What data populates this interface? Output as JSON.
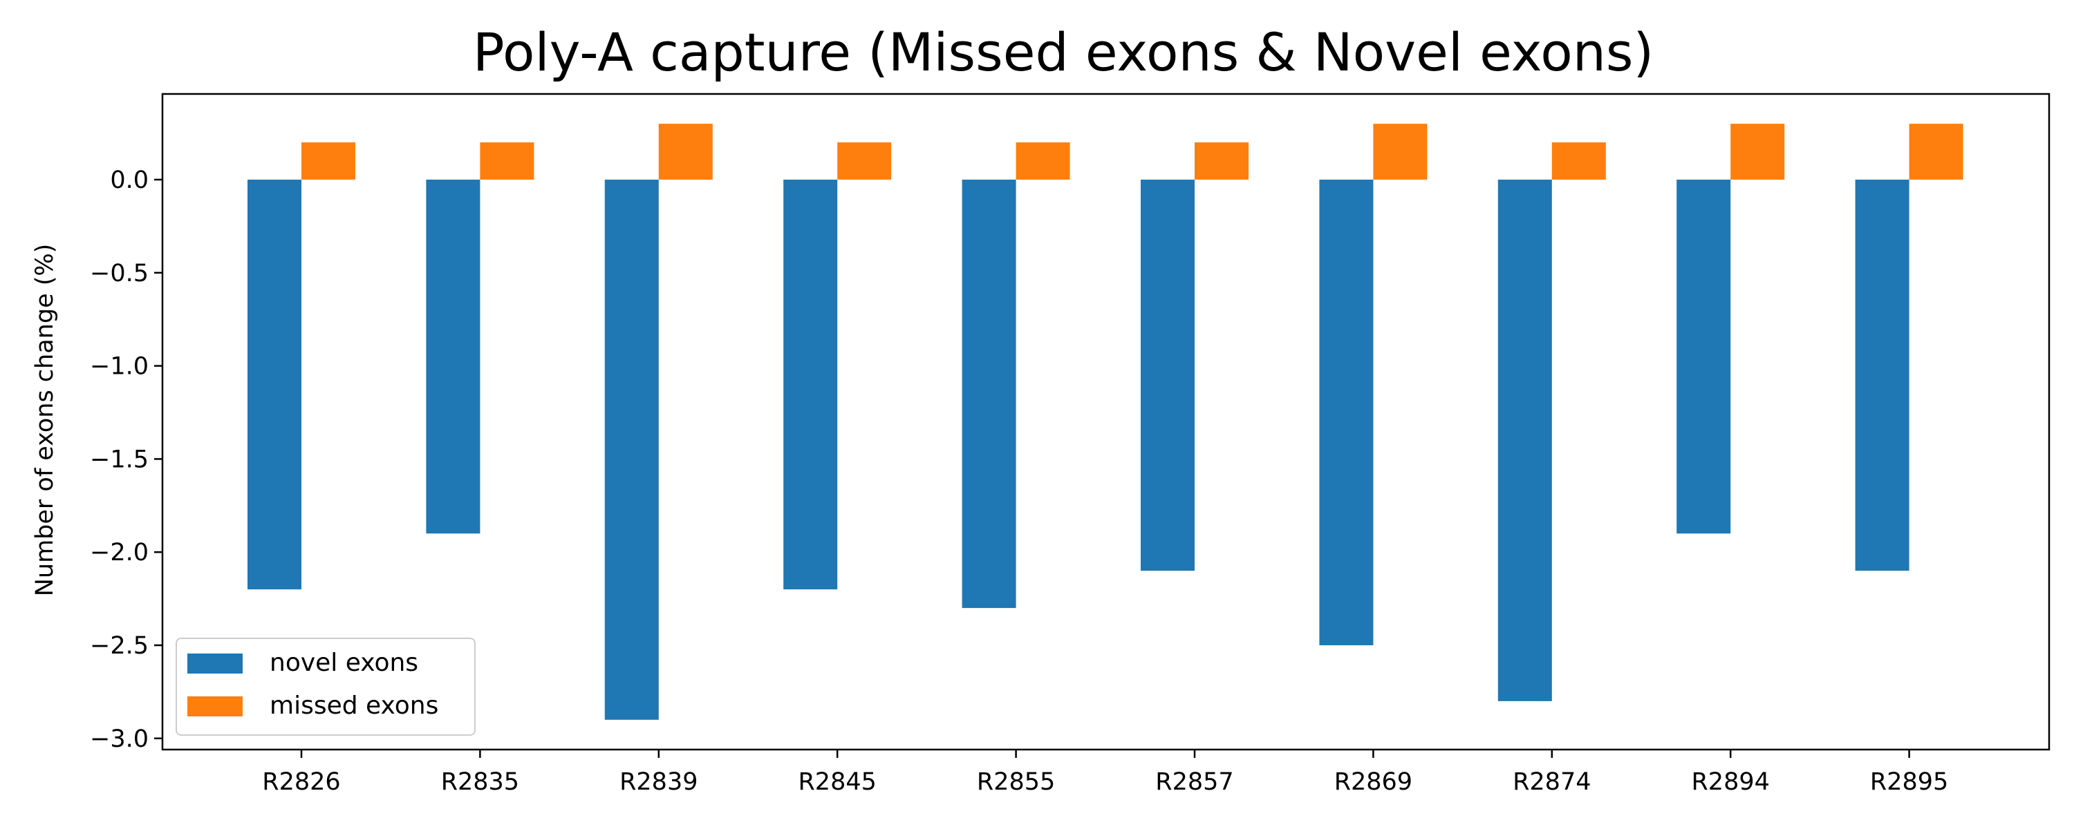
{
  "chart_data": {
    "type": "bar",
    "title": "Poly-A capture (Missed exons & Novel exons)",
    "xlabel": "",
    "ylabel": "Number of exons change (%)",
    "categories": [
      "R2826",
      "R2835",
      "R2839",
      "R2845",
      "R2855",
      "R2857",
      "R2869",
      "R2874",
      "R2894",
      "R2895"
    ],
    "series": [
      {
        "name": "novel exons",
        "color": "#1f77b4",
        "values": [
          -2.2,
          -1.9,
          -2.9,
          -2.2,
          -2.3,
          -2.1,
          -2.5,
          -2.8,
          -1.9,
          -2.1
        ]
      },
      {
        "name": "missed exons",
        "color": "#ff7f0e",
        "values": [
          0.2,
          0.2,
          0.3,
          0.2,
          0.2,
          0.2,
          0.3,
          0.2,
          0.3,
          0.3
        ]
      }
    ],
    "ylim": [
      -3.06,
      0.46
    ],
    "yticks": [
      0.0,
      -0.5,
      -1.0,
      -1.5,
      -2.0,
      -2.5,
      -3.0
    ],
    "ytick_labels": [
      "0.0",
      "−0.5",
      "−1.0",
      "−1.5",
      "−2.0",
      "−2.5",
      "−3.0"
    ],
    "grid": false,
    "legend_position": "bottom-left"
  }
}
